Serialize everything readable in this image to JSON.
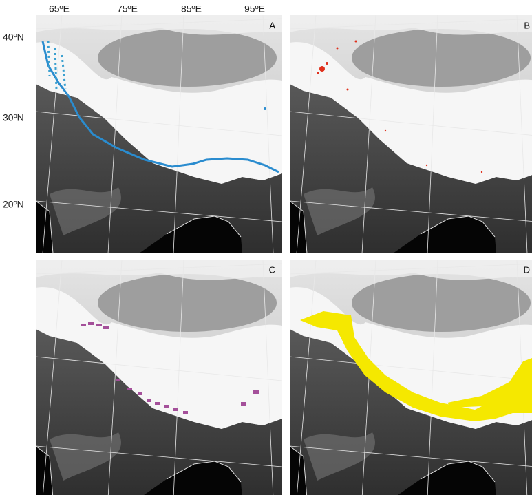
{
  "axes": {
    "longitude_labels": [
      "65ºE",
      "75ºE",
      "85ºE",
      "95ºE"
    ],
    "latitude_labels": [
      "40ºN",
      "30ºN",
      "20ºN"
    ]
  },
  "panels": [
    {
      "label": "A"
    },
    {
      "label": "B"
    },
    {
      "label": "C"
    },
    {
      "label": "D"
    }
  ]
}
